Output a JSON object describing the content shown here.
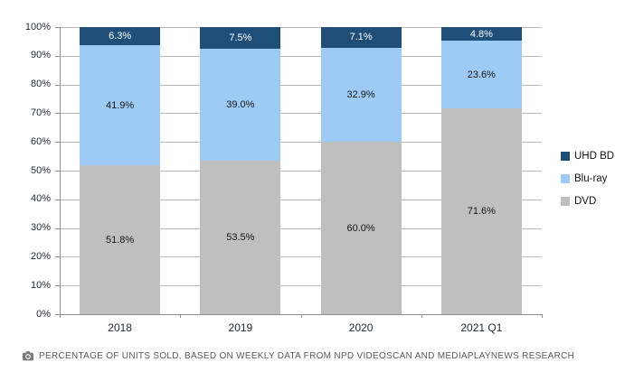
{
  "chart_data": {
    "type": "bar",
    "stacked": true,
    "categories": [
      "2018",
      "2019",
      "2020",
      "2021 Q1"
    ],
    "series": [
      {
        "name": "DVD",
        "color": "#bfbfbf",
        "label_color": "#141414",
        "values": [
          51.8,
          53.5,
          60.0,
          71.6
        ],
        "value_labels": [
          "51.8%",
          "53.5%",
          "60.0%",
          "71.6%"
        ]
      },
      {
        "name": "Blu-ray",
        "color": "#9ecbf5",
        "label_color": "#141414",
        "values": [
          41.9,
          39.0,
          32.9,
          23.6
        ],
        "value_labels": [
          "41.9%",
          "39.0%",
          "32.9%",
          "23.6%"
        ]
      },
      {
        "name": "UHD BD",
        "color": "#1f4e79",
        "label_color": "#ffffff",
        "values": [
          6.3,
          7.5,
          7.1,
          4.8
        ],
        "value_labels": [
          "6.3%",
          "7.5%",
          "7.1%",
          "4.8%"
        ]
      }
    ],
    "title": "",
    "xlabel": "",
    "ylabel": "",
    "ylim": [
      0,
      100
    ],
    "ytick_step": 10,
    "ytick_labels": [
      "0%",
      "10%",
      "20%",
      "30%",
      "40%",
      "50%",
      "60%",
      "70%",
      "80%",
      "90%",
      "100%"
    ],
    "grid": true,
    "legend_position": "right"
  },
  "legend": {
    "items": [
      {
        "label": "UHD BD",
        "color": "#1f4e79"
      },
      {
        "label": "Blu-ray",
        "color": "#9ecbf5"
      },
      {
        "label": "DVD",
        "color": "#bfbfbf"
      }
    ]
  },
  "footer": {
    "icon": "camera-icon",
    "text": "PERCENTAGE OF UNITS SOLD, BASED ON WEEKLY DATA FROM NPD VIDEOSCAN AND MEDIAPLAYNEWS RESEARCH"
  },
  "colors": {
    "uhd_bd": "#1f4e79",
    "blu_ray": "#9ecbf5",
    "dvd": "#bfbfbf",
    "gridline": "#b9b9b9",
    "axis": "#8f8f8f",
    "axis_text": "#1e2633",
    "footer_text": "#595959"
  }
}
